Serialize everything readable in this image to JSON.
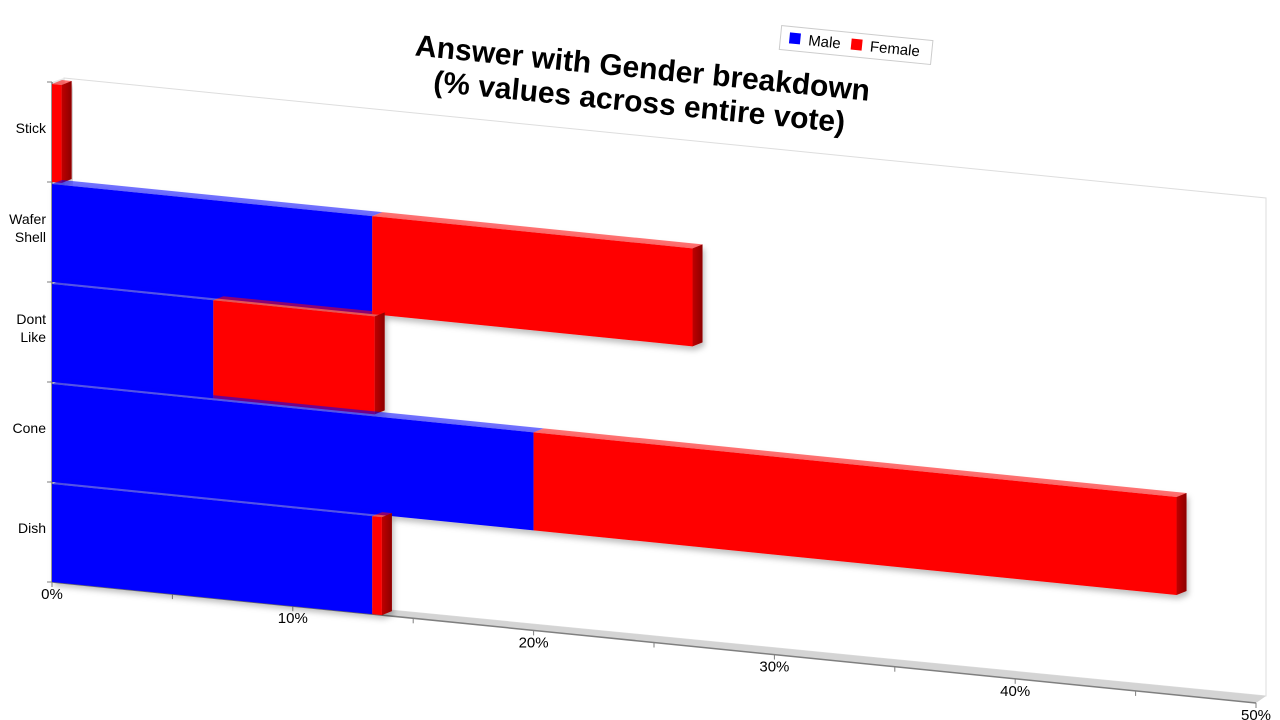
{
  "chart_data": {
    "type": "bar",
    "orientation": "horizontal",
    "stacked": true,
    "title_lines": [
      "Answer with Gender breakdown",
      "(% values across entire vote)"
    ],
    "categories": [
      "Stick",
      "Wafer Shell",
      "Dont Like",
      "Cone",
      "Dish"
    ],
    "category_label_lines": [
      [
        "Stick"
      ],
      [
        "Wafer",
        "Shell"
      ],
      [
        "Dont",
        "Like"
      ],
      [
        "Cone"
      ],
      [
        "Dish"
      ]
    ],
    "series": [
      {
        "name": "Male",
        "color": "#0000ff",
        "values": [
          0,
          13.3,
          6.7,
          20,
          13.3
        ]
      },
      {
        "name": "Female",
        "color": "#ff0000",
        "values": [
          0.4,
          13.3,
          6.7,
          26.7,
          0.4
        ]
      }
    ],
    "x_ticks": [
      "0%",
      "10%",
      "20%",
      "30%",
      "40%",
      "50%"
    ],
    "xlim": [
      0,
      50
    ],
    "grid": false,
    "legend_position": "top-right"
  }
}
